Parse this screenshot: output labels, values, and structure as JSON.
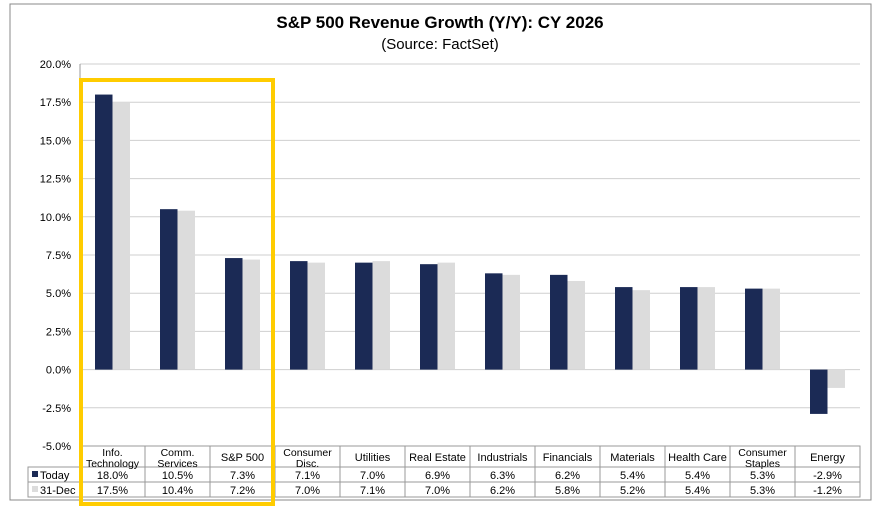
{
  "chart_data": {
    "type": "bar",
    "title": "S&P 500 Revenue Growth (Y/Y): CY 2026",
    "subtitle": "(Source: FactSet)",
    "categories": [
      [
        "Info.",
        "Technology"
      ],
      [
        "Comm.",
        "Services"
      ],
      [
        "S&P 500"
      ],
      [
        "Consumer",
        "Disc."
      ],
      [
        "Utilities"
      ],
      [
        "Real Estate"
      ],
      [
        "Industrials"
      ],
      [
        "Financials"
      ],
      [
        "Materials"
      ],
      [
        "Health Care"
      ],
      [
        "Consumer",
        "Staples"
      ],
      [
        "Energy"
      ]
    ],
    "series": [
      {
        "name": "Today",
        "color": "#1B2A55",
        "values": [
          18.0,
          10.5,
          7.3,
          7.1,
          7.0,
          6.9,
          6.3,
          6.2,
          5.4,
          5.4,
          5.3,
          -2.9
        ],
        "labels": [
          "18.0%",
          "10.5%",
          "7.3%",
          "7.1%",
          "7.0%",
          "6.9%",
          "6.3%",
          "6.2%",
          "5.4%",
          "5.4%",
          "5.3%",
          "-2.9%"
        ]
      },
      {
        "name": "31-Dec",
        "color": "#DCDCDC",
        "values": [
          17.5,
          10.4,
          7.2,
          7.0,
          7.1,
          7.0,
          6.2,
          5.8,
          5.2,
          5.4,
          5.3,
          -1.2
        ],
        "labels": [
          "17.5%",
          "10.4%",
          "7.2%",
          "7.0%",
          "7.1%",
          "7.0%",
          "6.2%",
          "5.8%",
          "5.2%",
          "5.4%",
          "5.3%",
          "-1.2%"
        ]
      }
    ],
    "ylim": [
      -5,
      20
    ],
    "yticks": [
      "20.0%",
      "17.5%",
      "15.0%",
      "12.5%",
      "10.0%",
      "7.5%",
      "5.0%",
      "2.5%",
      "0.0%",
      "-2.5%",
      "-5.0%"
    ],
    "ytick_values": [
      20,
      17.5,
      15,
      12.5,
      10,
      7.5,
      5,
      2.5,
      0,
      -2.5,
      -5
    ],
    "grid": true,
    "highlight": {
      "color": "#FFCC00",
      "categories": [
        "Info.",
        "Comm.",
        "S&P 500"
      ]
    }
  }
}
